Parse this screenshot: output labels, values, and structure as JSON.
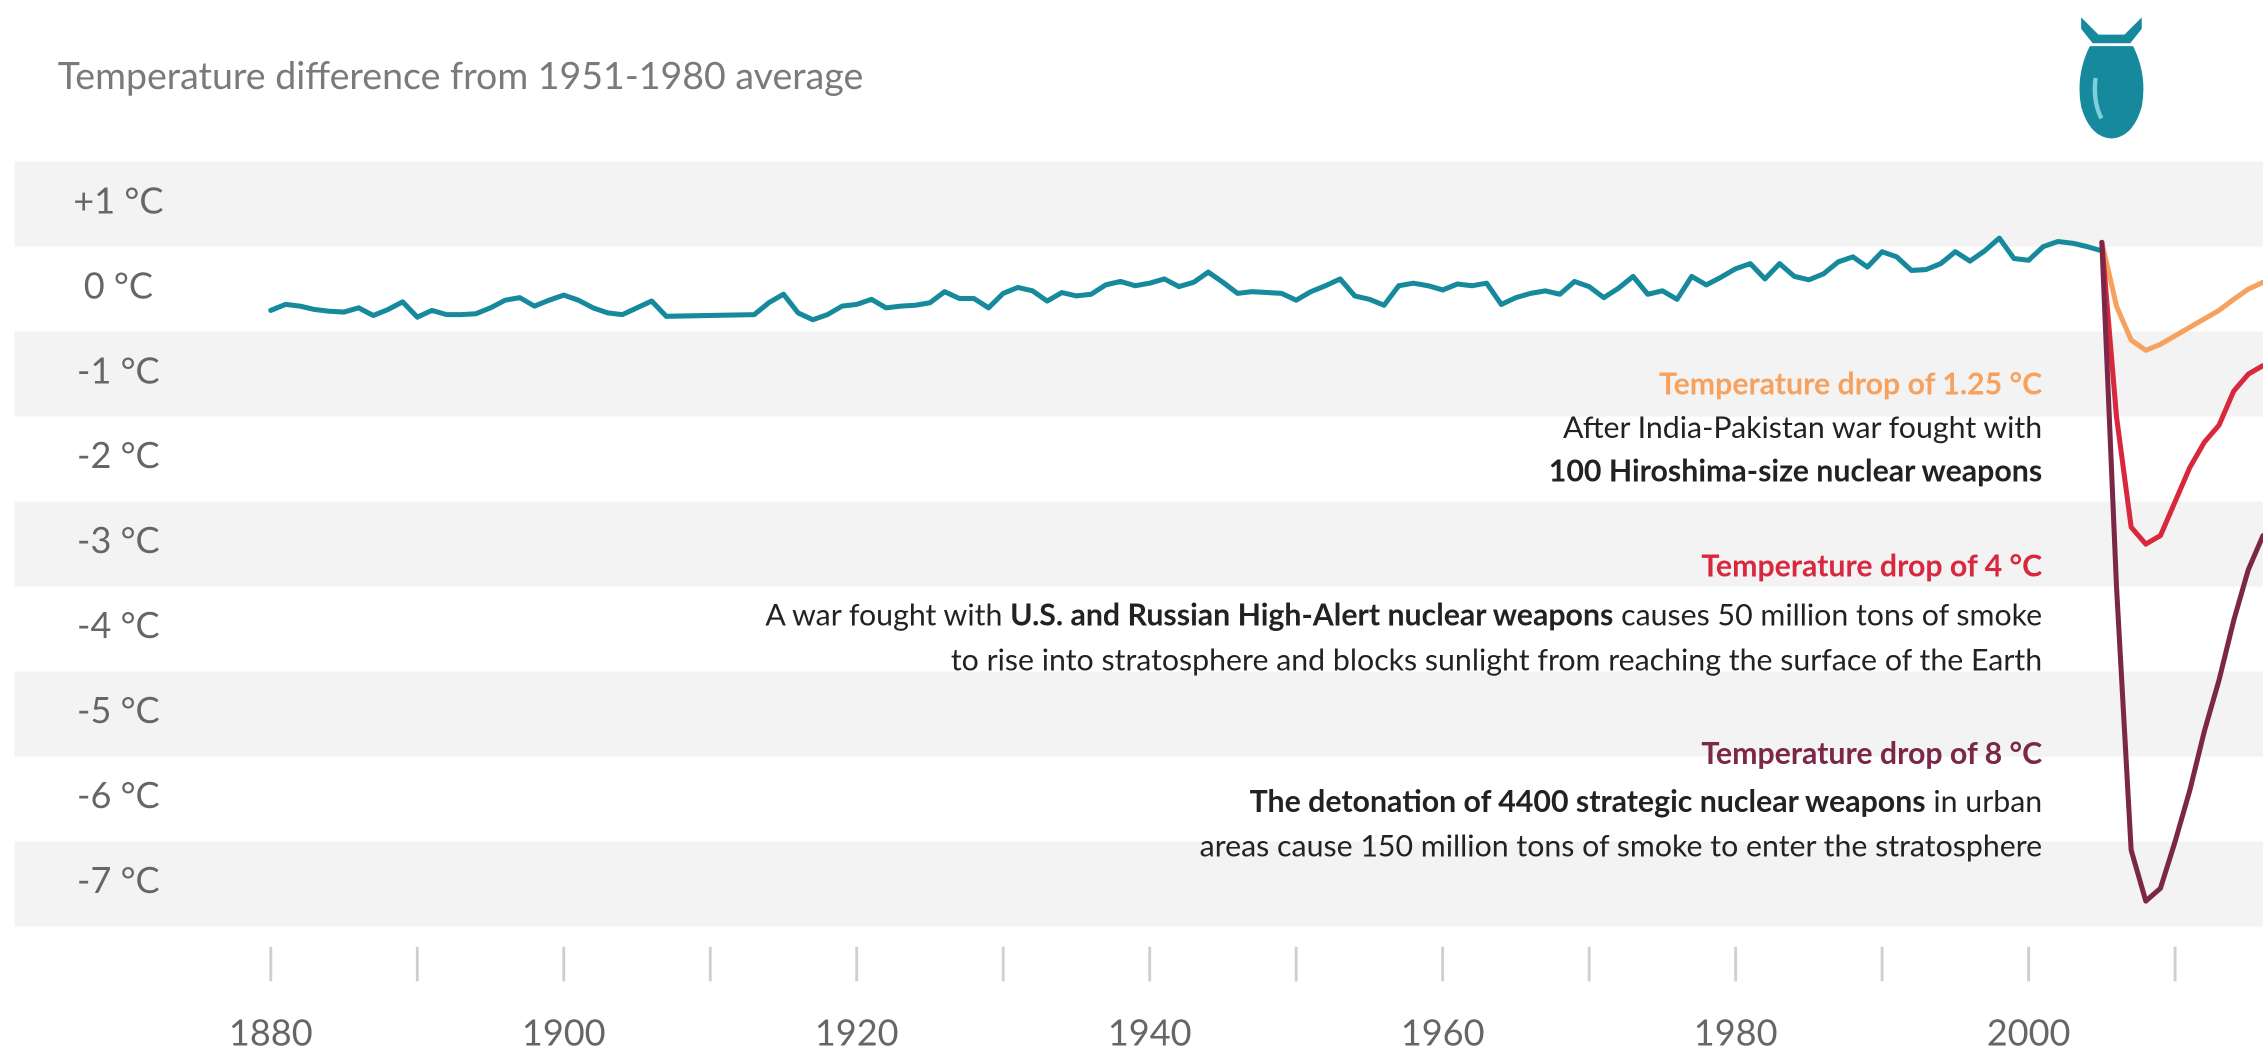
{
  "chart_data": {
    "type": "line",
    "title": "Temperature difference from 1951-1980 average",
    "xlim": [
      1862.5,
      2016
    ],
    "ylim": [
      1.5,
      -7.5
    ],
    "xticks": [
      1880,
      1900,
      1920,
      1940,
      1960,
      1980,
      2000
    ],
    "xminor": [
      1890,
      1910,
      1930,
      1950,
      1970,
      1990,
      2010
    ],
    "yticks": [
      {
        "value": 1,
        "label": "+1 °C"
      },
      {
        "value": 0,
        "label": "0 °C"
      },
      {
        "value": -1,
        "label": "-1 °C"
      },
      {
        "value": -2,
        "label": "-2 °C"
      },
      {
        "value": -3,
        "label": "-3 °C"
      },
      {
        "value": -4,
        "label": "-4 °C"
      },
      {
        "value": -5,
        "label": "-5 °C"
      },
      {
        "value": -6,
        "label": "-6 °C"
      },
      {
        "value": -7,
        "label": "-7 °C"
      }
    ],
    "band_color": "#f3f3f3",
    "series": [
      {
        "color": "#168a9c",
        "x": [
          1880,
          1881,
          1882,
          1883,
          1884,
          1885,
          1886,
          1887,
          1888,
          1889,
          1890,
          1891,
          1892,
          1893,
          1894,
          1895,
          1896,
          1897,
          1898,
          1899,
          1900,
          1901,
          1902,
          1903,
          1904,
          1905,
          1906,
          1907,
          1913,
          1914,
          1915,
          1916,
          1917,
          1918,
          1919,
          1920,
          1921,
          1922,
          1923,
          1924,
          1925,
          1926,
          1927,
          1928,
          1929,
          1930,
          1931,
          1932,
          1933,
          1934,
          1935,
          1936,
          1937,
          1938,
          1939,
          1940,
          1941,
          1942,
          1943,
          1944,
          1945,
          1946,
          1947,
          1948,
          1949,
          1950,
          1951,
          1952,
          1953,
          1954,
          1955,
          1956,
          1957,
          1958,
          1959,
          1960,
          1961,
          1962,
          1963,
          1964,
          1965,
          1966,
          1967,
          1968,
          1969,
          1970,
          1971,
          1972,
          1973,
          1974,
          1975,
          1976,
          1977,
          1978,
          1979,
          1980,
          1981,
          1982,
          1983,
          1984,
          1985,
          1986,
          1987,
          1988,
          1989,
          1990,
          1991,
          1992,
          1993,
          1994,
          1995,
          1996,
          1997,
          1998,
          1999,
          2000,
          2001,
          2002,
          2003,
          2004,
          2005
        ],
        "values": [
          -0.25,
          -0.18,
          -0.2,
          -0.24,
          -0.26,
          -0.27,
          -0.22,
          -0.31,
          -0.24,
          -0.15,
          -0.33,
          -0.25,
          -0.3,
          -0.3,
          -0.29,
          -0.22,
          -0.13,
          -0.1,
          -0.2,
          -0.13,
          -0.07,
          -0.13,
          -0.22,
          -0.28,
          -0.3,
          -0.22,
          -0.14,
          -0.32,
          -0.3,
          -0.16,
          -0.06,
          -0.28,
          -0.36,
          -0.3,
          -0.2,
          -0.18,
          -0.12,
          -0.22,
          -0.2,
          -0.19,
          -0.16,
          -0.03,
          -0.11,
          -0.11,
          -0.22,
          -0.05,
          0.02,
          -0.02,
          -0.14,
          -0.04,
          -0.08,
          -0.06,
          0.05,
          0.09,
          0.04,
          0.07,
          0.12,
          0.03,
          0.08,
          0.2,
          0.08,
          -0.05,
          -0.03,
          -0.04,
          -0.05,
          -0.13,
          -0.03,
          0.04,
          0.12,
          -0.08,
          -0.12,
          -0.19,
          0.04,
          0.07,
          0.04,
          -0.01,
          0.06,
          0.04,
          0.07,
          -0.18,
          -0.1,
          -0.05,
          -0.02,
          -0.06,
          0.09,
          0.03,
          -0.1,
          0.01,
          0.15,
          -0.06,
          -0.02,
          -0.12,
          0.15,
          0.05,
          0.14,
          0.24,
          0.3,
          0.12,
          0.3,
          0.15,
          0.11,
          0.18,
          0.32,
          0.38,
          0.26,
          0.44,
          0.38,
          0.22,
          0.23,
          0.3,
          0.44,
          0.33,
          0.45,
          0.6,
          0.36,
          0.34,
          0.5,
          0.56,
          0.54,
          0.5,
          0.45
        ]
      },
      {
        "color": "#f7a15e",
        "x": [
          2005,
          2006,
          2007,
          2008,
          2009,
          2010,
          2011,
          2012,
          2013,
          2014,
          2015,
          2016
        ],
        "values": [
          0.55,
          -0.2,
          -0.6,
          -0.72,
          -0.65,
          -0.55,
          -0.45,
          -0.35,
          -0.25,
          -0.12,
          0.0,
          0.08
        ]
      },
      {
        "color": "#d8283e",
        "x": [
          2005,
          2006,
          2007,
          2008,
          2009,
          2010,
          2011,
          2012,
          2013,
          2014,
          2015,
          2016
        ],
        "values": [
          0.55,
          -1.5,
          -2.8,
          -3.0,
          -2.9,
          -2.5,
          -2.1,
          -1.8,
          -1.6,
          -1.2,
          -1.0,
          -0.9
        ]
      },
      {
        "color": "#7b2848",
        "x": [
          2005,
          2006,
          2007,
          2008,
          2009,
          2010,
          2011,
          2012,
          2013,
          2014,
          2015,
          2016
        ],
        "values": [
          0.55,
          -3.5,
          -6.6,
          -7.2,
          -7.05,
          -6.5,
          -5.9,
          -5.2,
          -4.6,
          -3.9,
          -3.3,
          -2.9
        ]
      }
    ],
    "annotations": [
      {
        "title": "Temperature drop of 1.25 °C",
        "color": "#f7a15e",
        "lines": [
          [
            {
              "text": "After India-Pakistan war fought with",
              "bold": false
            }
          ],
          [
            {
              "text": "100 Hiroshima-size nuclear weapons",
              "bold": true
            }
          ]
        ]
      },
      {
        "title": "Temperature drop of 4 °C",
        "color": "#d8283e",
        "lines": [
          [
            {
              "text": "A war fought with ",
              "bold": false
            },
            {
              "text": "U.S. and Russian High-Alert nuclear weapons",
              "bold": true
            },
            {
              "text": " causes 50 million tons of smoke",
              "bold": false
            }
          ],
          [
            {
              "text": "to rise into stratosphere and blocks sunlight from reaching the surface of the Earth",
              "bold": false
            }
          ]
        ]
      },
      {
        "title": "Temperature drop of 8 °C",
        "color": "#7b2848",
        "lines": [
          [
            {
              "text": "The detonation of 4400 strategic nuclear weapons",
              "bold": true
            },
            {
              "text": " in urban",
              "bold": false
            }
          ],
          [
            {
              "text": "areas cause 150 million tons of smoke to enter the stratosphere",
              "bold": false
            }
          ]
        ]
      }
    ]
  }
}
